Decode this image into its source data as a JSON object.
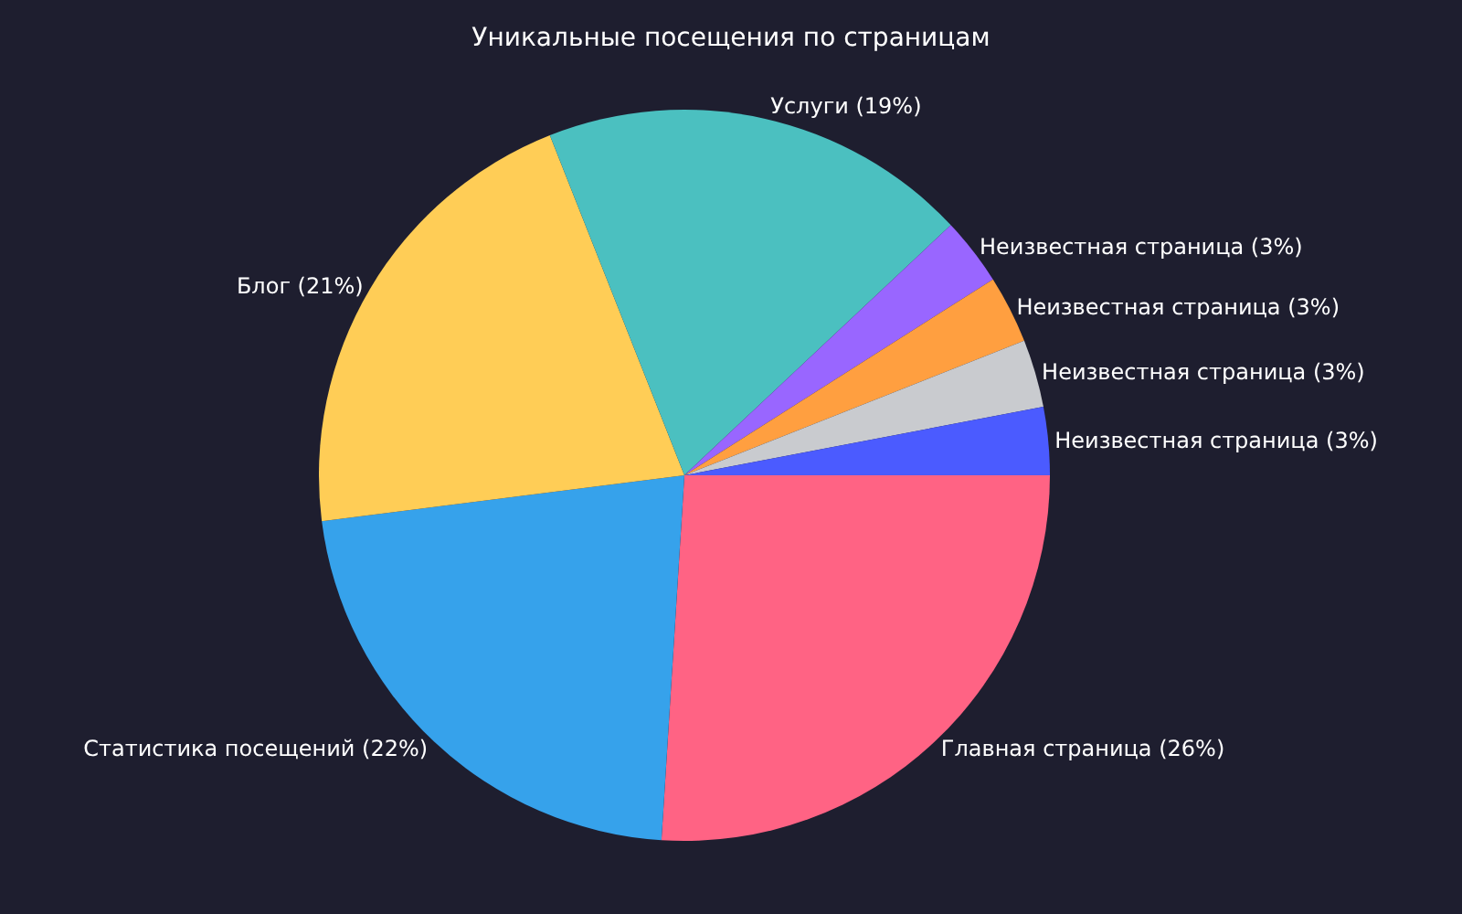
{
  "chart_data": {
    "type": "pie",
    "title": "Уникальные посещения по страницам",
    "categories": [
      "Главная страница",
      "Статистика посещений",
      "Блог",
      "Услуги",
      "Неизвестная страница",
      "Неизвестная страница",
      "Неизвестная страница",
      "Неизвестная страница"
    ],
    "values": [
      26,
      22,
      21,
      19,
      3,
      3,
      3,
      3
    ],
    "colors": [
      "#ff6384",
      "#36a2eb",
      "#ffcd56",
      "#4bc0c0",
      "#9966ff",
      "#ff9f40",
      "#c9cbcf",
      "#4b5bff"
    ],
    "value_labels": [
      "(26%)",
      "(22%)",
      "(21%)",
      "(19%)",
      "(3%)",
      "(3%)",
      "(3%)",
      "(3%)"
    ],
    "legend": false
  }
}
